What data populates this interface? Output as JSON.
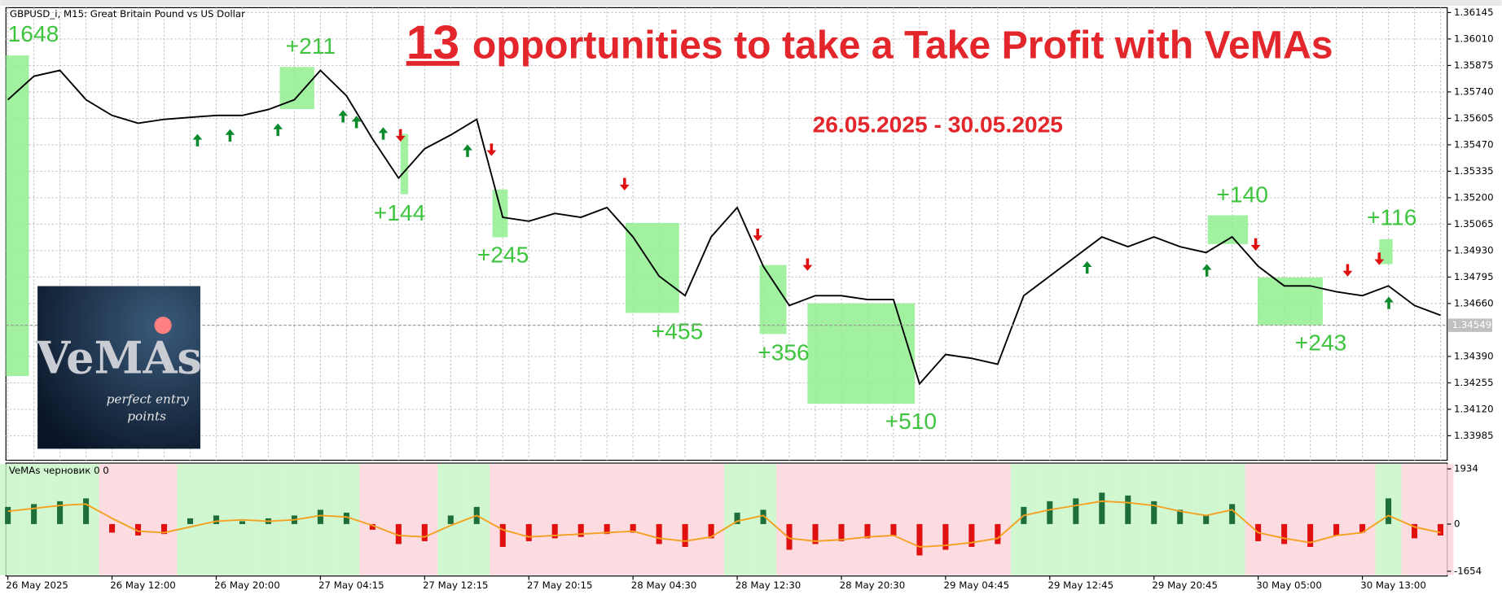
{
  "chart_data": [
    {
      "type": "line",
      "title": "GBPUSD_i, M15:  Great Britain Pound vs US Dollar",
      "color": "#000000",
      "values": [
        1.357,
        1.3582,
        1.3585,
        1.357,
        1.3562,
        1.3558,
        1.356,
        1.3561,
        1.3562,
        1.3562,
        1.3565,
        1.357,
        1.3585,
        1.3572,
        1.355,
        1.353,
        1.3545,
        1.3552,
        1.356,
        1.351,
        1.3508,
        1.3512,
        1.351,
        1.3515,
        1.35,
        1.348,
        1.347,
        1.35,
        1.3515,
        1.3485,
        1.3465,
        1.347,
        1.347,
        1.3468,
        1.3468,
        1.3425,
        1.344,
        1.3438,
        1.3435,
        1.347,
        1.348,
        1.349,
        1.35,
        1.3495,
        1.35,
        1.3495,
        1.3492,
        1.35,
        1.3485,
        1.3475,
        1.3475,
        1.3472,
        1.347,
        1.3475,
        1.3465,
        1.346
      ],
      "current_price": 1.34549,
      "ylim": [
        1.3386,
        1.3617
      ],
      "yticks": [
        1.36145,
        {
          "value": 1.3601,
          "label": "1.36010"
        },
        1.35875,
        {
          "value": 1.3574,
          "label": "1.35740"
        },
        1.35605,
        {
          "value": 1.3547,
          "label": "1.35470"
        },
        1.35335,
        {
          "value": 1.352,
          "label": "1.35200"
        },
        1.35065,
        {
          "value": 1.3493,
          "label": "1.34930"
        },
        1.34795,
        {
          "value": 1.3466,
          "label": "1.34660"
        },
        {
          "value": 1.3439,
          "label": "1.34390"
        },
        1.34255,
        {
          "value": 1.3412,
          "label": "1.34120"
        },
        1.33985
      ],
      "grid": true,
      "annotations": {
        "count": "13",
        "headline": "opportunities to take a Take Profit with VeMAs",
        "dates": "26.05.2025 - 30.05.2025",
        "profits": [
          "1648",
          "+211",
          "+144",
          "+245",
          "+455",
          "+356",
          "+510",
          "+140",
          "+243",
          "+116"
        ]
      },
      "logo": {
        "title": "VeMAs",
        "line1": "perfect entry",
        "line2": "points"
      }
    },
    {
      "type": "bar",
      "title": "VeMAs черновик 0 0",
      "categories": [
        "26 May 2025",
        null,
        null,
        null,
        "26 May 12:00",
        null,
        null,
        null,
        "26 May 20:00",
        null,
        null,
        null,
        "27 May 04:15",
        null,
        null,
        null,
        "27 May 12:15",
        null,
        null,
        null,
        "27 May 20:15",
        null,
        null,
        null,
        "28 May 04:30",
        null,
        null,
        null,
        "28 May 12:30",
        null,
        null,
        null,
        "28 May 20:30",
        null,
        null,
        null,
        "29 May 04:45",
        null,
        null,
        null,
        "29 May 12:45",
        null,
        null,
        null,
        "29 May 20:45",
        null,
        null,
        null,
        "30 May 05:00",
        null,
        null,
        null,
        "30 May 13:00",
        null,
        null,
        null
      ],
      "series": [
        {
          "type": "bar",
          "color": "#1e6e3c",
          "negative_color": "#e01010",
          "values": [
            600,
            700,
            800,
            900,
            -300,
            -400,
            -350,
            200,
            300,
            100,
            200,
            300,
            500,
            400,
            -200,
            -700,
            -600,
            300,
            600,
            -800,
            -600,
            -500,
            -450,
            -350,
            -300,
            -700,
            -800,
            -500,
            400,
            500,
            -900,
            -700,
            -600,
            -500,
            -400,
            -1100,
            -900,
            -800,
            -700,
            600,
            800,
            900,
            1100,
            1000,
            800,
            500,
            300,
            700,
            -600,
            -700,
            -800,
            -400,
            -300,
            900,
            -500,
            -400
          ]
        },
        {
          "type": "line",
          "color": "#f5a01e",
          "values": [
            450,
            550,
            650,
            700,
            200,
            -250,
            -300,
            -100,
            100,
            150,
            100,
            150,
            300,
            250,
            -50,
            -400,
            -450,
            -50,
            300,
            -200,
            -450,
            -400,
            -350,
            -300,
            -250,
            -500,
            -600,
            -450,
            100,
            300,
            -500,
            -600,
            -550,
            -450,
            -400,
            -800,
            -750,
            -650,
            -500,
            300,
            500,
            650,
            800,
            750,
            650,
            450,
            300,
            500,
            -300,
            -500,
            -650,
            -400,
            -300,
            300,
            -100,
            -300
          ]
        }
      ],
      "ylim": [
        -1654,
        1934
      ],
      "yticks": [
        -1654,
        0,
        1934
      ]
    }
  ]
}
